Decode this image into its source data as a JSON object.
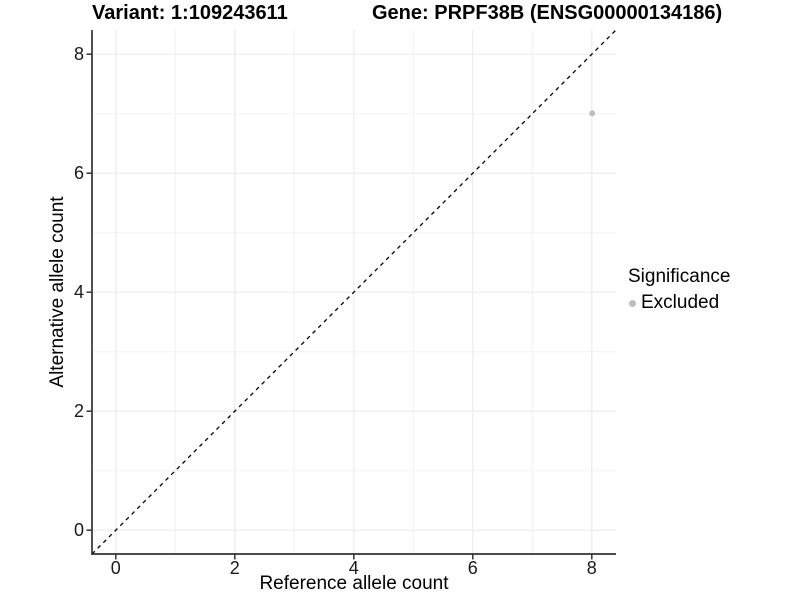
{
  "titles": {
    "variant": "Variant: 1:109243611",
    "gene": "Gene: PRPF38B (ENSG00000134186)"
  },
  "axes": {
    "x": {
      "label": "Reference allele count",
      "ticks": [
        "0",
        "2",
        "4",
        "6",
        "8"
      ]
    },
    "y": {
      "label": "Alternative allele count",
      "ticks": [
        "0",
        "2",
        "4",
        "6",
        "8"
      ]
    }
  },
  "legend": {
    "title": "Significance",
    "items": [
      {
        "label": "Excluded",
        "color": "#bebebe"
      }
    ]
  },
  "colors": {
    "point": "#bebebe",
    "grid_major": "#ebebeb",
    "grid_minor": "#f2f2f2",
    "axis_line": "#333333",
    "reference_line": "#000000",
    "background": "#ffffff"
  },
  "chart_data": {
    "type": "scatter",
    "title": "Variant: 1:109243611 — Gene: PRPF38B (ENSG00000134186)",
    "xlabel": "Reference allele count",
    "ylabel": "Alternative allele count",
    "xlim": [
      -0.4,
      8.4
    ],
    "ylim": [
      -0.4,
      8.4
    ],
    "x_ticks": [
      0,
      2,
      4,
      6,
      8
    ],
    "y_ticks": [
      0,
      2,
      4,
      6,
      8
    ],
    "minor_ticks": [
      1,
      3,
      5,
      7
    ],
    "grid": "major+minor",
    "legend_position": "right",
    "series": [
      {
        "name": "Excluded",
        "color": "#bebebe",
        "point_radius": 3,
        "points": [
          {
            "x": 8,
            "y": 7
          }
        ]
      }
    ],
    "reference_line": {
      "type": "identity",
      "slope": 1,
      "intercept": 0,
      "style": "dashed",
      "color": "#000000"
    }
  }
}
